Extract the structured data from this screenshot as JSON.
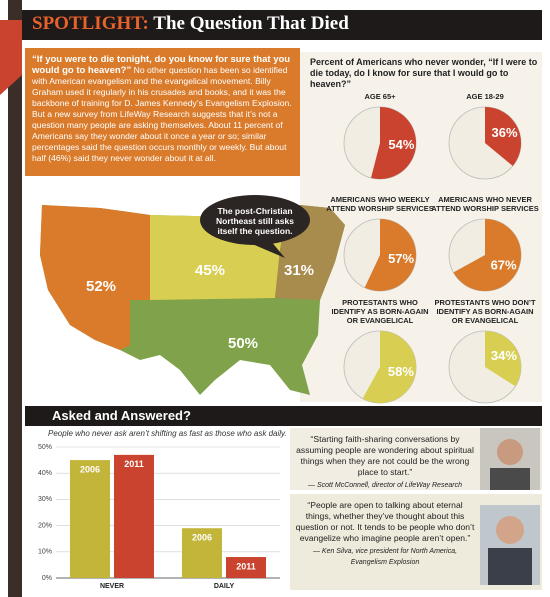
{
  "header": {
    "spotlight": "SPOTLIGHT:",
    "title": "The Question That Died"
  },
  "intro": {
    "lead": "“If you were to die tonight, do you know for sure that you would go to heaven?”",
    "body": "No other question has been so identified with American evangelism and the evangelical movement. Billy Graham used it regularly in his crusades and books, and it was the backbone of training for D. James Kennedy’s Evangelism Explosion. But a new survey from LifeWay Research suggests that it’s not a question many people are asking themselves. About 11 percent of Americans say they wonder about it once a year or so; similar percentages said the question occurs monthly or weekly. But about half (46%) said they never wonder about it at all."
  },
  "map": {
    "callout": "The post-Christian Northeast still asks itself the question.",
    "regions": [
      {
        "label": "52%"
      },
      {
        "label": "45%"
      },
      {
        "label": "31%"
      },
      {
        "label": "50%"
      }
    ]
  },
  "pies_heading": "Percent of Americans who never wonder, “If I were to die today, do I know for sure that I would go to heaven?”",
  "chart_data": [
    {
      "type": "pie",
      "title": "AGE 65+",
      "values": [
        54
      ],
      "value_labels": [
        "54%"
      ],
      "color": "#c9432e"
    },
    {
      "type": "pie",
      "title": "AGE 18-29",
      "values": [
        36
      ],
      "value_labels": [
        "36%"
      ],
      "color": "#c9432e"
    },
    {
      "type": "pie",
      "title": "AMERICANS WHO WEEKLY ATTEND WORSHIP SERVICES",
      "values": [
        57
      ],
      "value_labels": [
        "57%"
      ],
      "color": "#d97b2b"
    },
    {
      "type": "pie",
      "title": "AMERICANS WHO NEVER ATTEND WORSHIP SERVICES",
      "values": [
        67
      ],
      "value_labels": [
        "67%"
      ],
      "color": "#d97b2b"
    },
    {
      "type": "pie",
      "title": "PROTESTANTS WHO IDENTIFY AS BORN-AGAIN OR EVANGELICAL",
      "values": [
        58
      ],
      "value_labels": [
        "58%"
      ],
      "color": "#d8cf52"
    },
    {
      "type": "pie",
      "title": "PROTESTANTS WHO DON’T IDENTIFY AS BORN-AGAIN OR EVANGELICAL",
      "values": [
        34
      ],
      "value_labels": [
        "34%"
      ],
      "color": "#d8cf52"
    },
    {
      "type": "bar",
      "title": "Asked and Answered?",
      "subtitle": "People who never ask aren’t shifting as fast as those who ask daily.",
      "categories": [
        "NEVER",
        "DAILY"
      ],
      "series": [
        {
          "name": "2006",
          "color": "#c3b43a",
          "values": [
            45,
            19
          ]
        },
        {
          "name": "2011",
          "color": "#c9432e",
          "values": [
            47,
            8
          ]
        }
      ],
      "ylim": [
        0,
        50
      ],
      "yticks": [
        {
          "value": 0,
          "label": "0%"
        },
        {
          "value": 10,
          "label": "10%"
        },
        {
          "value": 20,
          "label": "20%"
        },
        {
          "value": 30,
          "label": "30%"
        },
        {
          "value": 40,
          "label": "40%"
        },
        {
          "value": 50,
          "label": "50%"
        }
      ],
      "grid": true
    }
  ],
  "quotes": [
    {
      "text": "“Starting faith-sharing conversations by assuming people are wondering about spiritual things when they are not could be the wrong place to start.”",
      "attribution": "— Scott McConnell, director of LifeWay Research"
    },
    {
      "text": "“People are open to talking about eternal things, whether they’ve thought about this question or not. It tends to be people who don’t evangelize who imagine people aren’t open.”",
      "attribution": "— Ken Silva, vice president for North America, Evangelism Explosion"
    }
  ]
}
